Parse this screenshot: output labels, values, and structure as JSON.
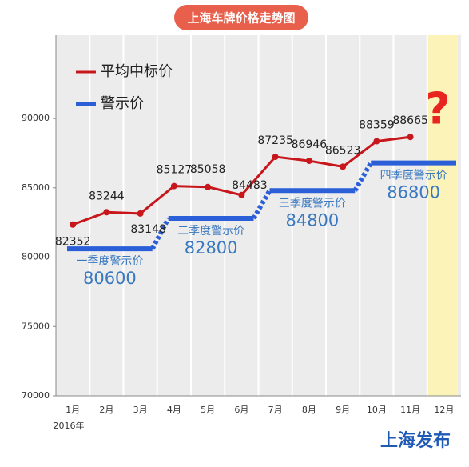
{
  "chart_data": {
    "type": "line",
    "title": "上海车牌价格走势图",
    "categories": [
      "1月",
      "2月",
      "3月",
      "4月",
      "5月",
      "6月",
      "7月",
      "8月",
      "9月",
      "10月",
      "11月",
      "12月"
    ],
    "year_label": "2016年",
    "series": [
      {
        "name": "平均中标价",
        "color": "#c8161d",
        "values": [
          82352,
          83244,
          83148,
          85127,
          85058,
          84483,
          87235,
          86946,
          86523,
          88359,
          88665,
          null
        ]
      }
    ],
    "warning": {
      "name": "警示价",
      "color": "#2a5fd8",
      "labels": [
        "一季度警示价",
        "二季度警示价",
        "三季度警示价",
        "四季度警示价"
      ],
      "values": [
        80600,
        82800,
        84800,
        86800
      ]
    },
    "ylim": [
      70000,
      96000
    ],
    "yticks": [
      70000,
      75000,
      80000,
      85000,
      90000
    ],
    "annotation": "?",
    "watermark": "上海发布"
  }
}
